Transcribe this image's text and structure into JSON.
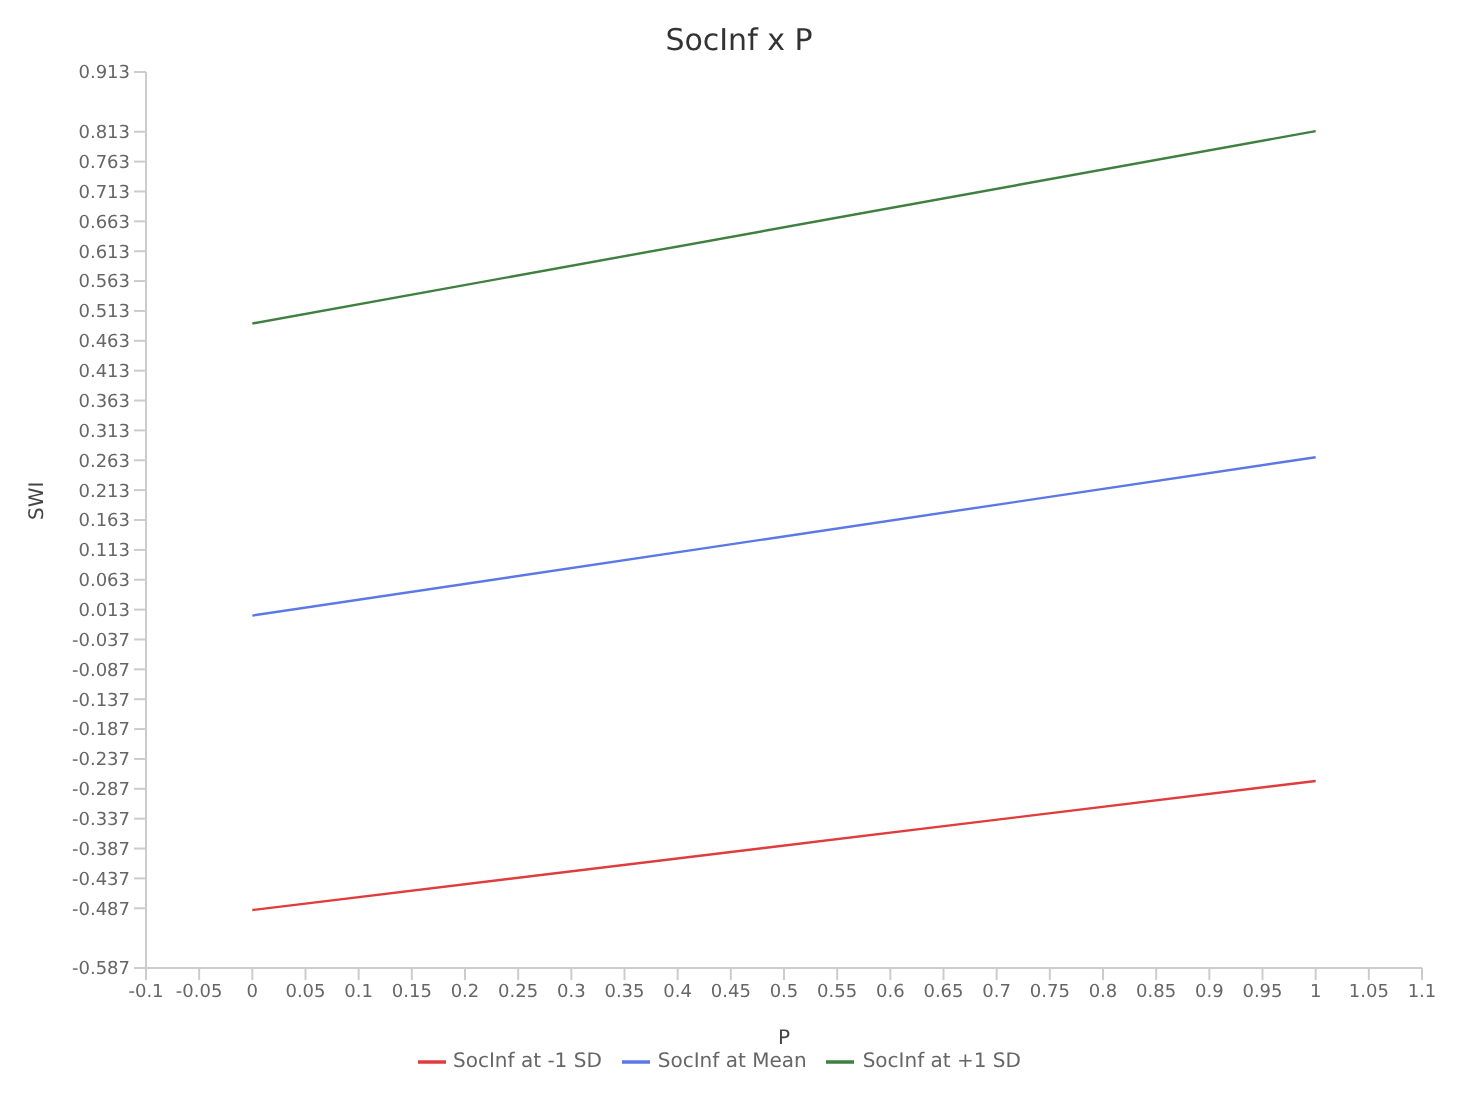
{
  "chart_data": {
    "type": "line",
    "title": "SocInf x P",
    "xlabel": "P",
    "ylabel": "SWI",
    "x": [
      0,
      1
    ],
    "series": [
      {
        "name": "SocInf at -1 SD",
        "color": "#e03c3c",
        "values": [
          -0.49,
          -0.274
        ]
      },
      {
        "name": "SocInf at Mean",
        "color": "#5a78e6",
        "values": [
          0.003,
          0.268
        ]
      },
      {
        "name": "SocInf at +1 SD",
        "color": "#3f7f3f",
        "values": [
          0.492,
          0.814
        ]
      }
    ],
    "xlim": [
      -0.1,
      1.1
    ],
    "xticks": [
      -0.1,
      -0.05,
      0,
      0.05,
      0.1,
      0.15,
      0.2,
      0.25,
      0.3,
      0.35,
      0.4,
      0.45,
      0.5,
      0.55,
      0.6,
      0.65,
      0.7,
      0.75,
      0.8,
      0.85,
      0.9,
      0.95,
      1,
      1.05,
      1.1
    ],
    "ylim": [
      -0.587,
      0.913
    ],
    "yticks": [
      -0.587,
      -0.487,
      -0.437,
      -0.387,
      -0.337,
      -0.287,
      -0.237,
      -0.187,
      -0.137,
      -0.087,
      -0.037,
      0.013,
      0.063,
      0.113,
      0.163,
      0.213,
      0.263,
      0.313,
      0.363,
      0.413,
      0.463,
      0.513,
      0.563,
      0.613,
      0.663,
      0.713,
      0.763,
      0.813,
      0.913
    ],
    "legend": "bottom",
    "marker": "none",
    "line_style": "solid",
    "grid": false
  }
}
